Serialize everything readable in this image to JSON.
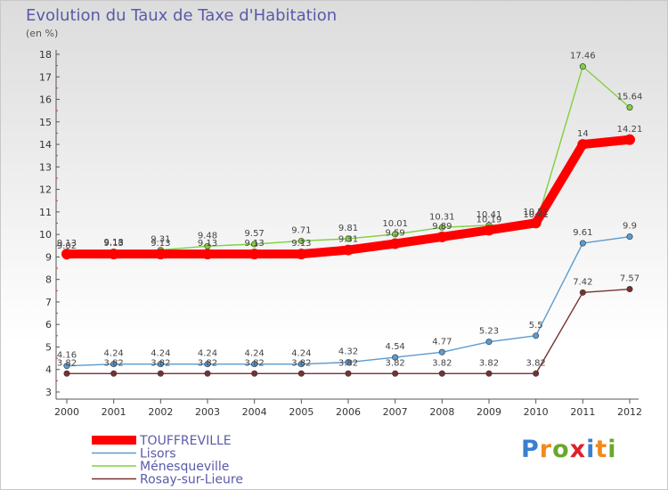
{
  "title": "Evolution du Taux de Taxe d'Habitation",
  "subtitle": "(en %)",
  "logo": {
    "letters": [
      "P",
      "r",
      "o",
      "x",
      "i",
      "t",
      "i"
    ],
    "colors": [
      "#3a7fd0",
      "#f08a1c",
      "#6aa82a",
      "#e0202a",
      "#3a7fd0",
      "#f08a1c",
      "#6aa82a"
    ]
  },
  "chart_data": {
    "type": "line",
    "x": [
      "2000",
      "2001",
      "2002",
      "2003",
      "2004",
      "2005",
      "2006",
      "2007",
      "2008",
      "2009",
      "2010",
      "2011",
      "2012"
    ],
    "ylim": [
      3,
      18
    ],
    "yticks": [
      "3",
      "4",
      "5",
      "6",
      "7",
      "8",
      "9",
      "10",
      "11",
      "12",
      "13",
      "14",
      "15",
      "16",
      "17",
      "18"
    ],
    "grid": false,
    "legend_position": "bottom-left",
    "series": [
      {
        "name": "TOUFFREVILLE",
        "color": "#ff0000",
        "values": [
          9.13,
          9.13,
          9.13,
          9.13,
          9.13,
          9.13,
          9.31,
          9.59,
          9.89,
          10.19,
          10.51,
          14,
          14.21
        ],
        "labels": [
          "9.13",
          "9.13",
          "9.13",
          "9.13",
          "9.13",
          "9.13",
          "9.31",
          "9.59",
          "9.89",
          "10.19",
          "10.51",
          "14",
          "14.21"
        ]
      },
      {
        "name": "Lisors",
        "color": "#5a9bd0",
        "values": [
          4.16,
          4.24,
          4.24,
          4.24,
          4.24,
          4.24,
          4.32,
          4.54,
          4.77,
          5.23,
          5.5,
          9.61,
          9.9
        ],
        "labels": [
          "4.16",
          "4.24",
          "4.24",
          "4.24",
          "4.24",
          "4.24",
          "4.32",
          "4.54",
          "4.77",
          "5.23",
          "5.5",
          "9.61",
          "9.9"
        ]
      },
      {
        "name": "Ménesqueville",
        "color": "#80d040",
        "values": [
          9.02,
          9.18,
          9.31,
          9.48,
          9.57,
          9.71,
          9.81,
          10.01,
          10.31,
          10.41,
          10.41,
          17.46,
          15.64
        ],
        "labels": [
          "9.02",
          "9.18",
          "9.31",
          "9.48",
          "9.57",
          "9.71",
          "9.81",
          "10.01",
          "10.31",
          "10.41",
          "10.41",
          "17.46",
          "15.64"
        ]
      },
      {
        "name": "Rosay-sur-Lieure",
        "color": "#7a3030",
        "values": [
          3.82,
          3.82,
          3.82,
          3.82,
          3.82,
          3.82,
          3.82,
          3.82,
          3.82,
          3.82,
          3.82,
          7.42,
          7.57
        ],
        "labels": [
          "3.82",
          "3.82",
          "3.82",
          "3.82",
          "3.82",
          "3.82",
          "3.82",
          "3.82",
          "3.82",
          "3.82",
          "3.82",
          "7.42",
          "7.57"
        ]
      }
    ]
  }
}
